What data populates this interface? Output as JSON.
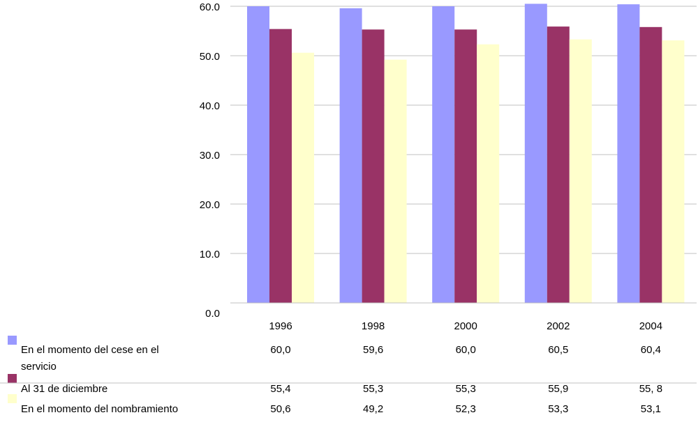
{
  "chart_data": {
    "type": "bar",
    "title": "",
    "xlabel": "",
    "ylabel": "",
    "ylim": [
      0,
      60
    ],
    "y_ticks": [
      "0.0",
      "10.0",
      "20.0",
      "30.0",
      "40.0",
      "50.0",
      "60.0"
    ],
    "grid": true,
    "legend_placement": "data-table-left",
    "categories": [
      "1996",
      "1998",
      "2000",
      "2002",
      "2004"
    ],
    "series": [
      {
        "name": "En el momento del cese en el servicio",
        "legend_lines": [
          "En el momento del cese en el",
          "servicio"
        ],
        "color": "#9999ff",
        "values": [
          60.0,
          59.6,
          60.0,
          60.5,
          60.4
        ],
        "labels": [
          "60,0",
          "59,6",
          "60,0",
          "60,5",
          "60,4"
        ]
      },
      {
        "name": "Al 31 de diciembre",
        "legend_lines": [
          "Al 31 de diciembre"
        ],
        "color": "#993366",
        "values": [
          55.4,
          55.3,
          55.3,
          55.9,
          55.8
        ],
        "labels": [
          "55,4",
          "55,3",
          "55,3",
          "55,9",
          "55, 8"
        ]
      },
      {
        "name": "En el momento del nombramiento",
        "legend_lines": [
          "En el momento del nombramiento"
        ],
        "color": "#ffffcc",
        "values": [
          50.6,
          49.2,
          52.3,
          53.3,
          53.1
        ],
        "labels": [
          "50,6",
          "49,2",
          "52,3",
          "53,3",
          "53,1"
        ]
      }
    ]
  }
}
